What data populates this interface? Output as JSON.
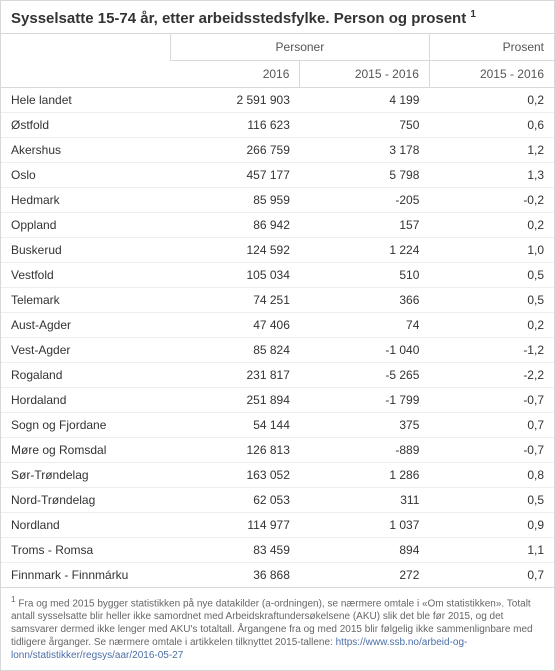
{
  "title": "Sysselsatte 15-74 år, etter arbeidsstedsfylke. Person og prosent",
  "footnote_marker": "1",
  "headers": {
    "group_personer": "Personer",
    "group_prosent": "Prosent",
    "col_2016": "2016",
    "col_diff": "2015 - 2016",
    "col_pct": "2015 - 2016"
  },
  "rows": [
    {
      "name": "Hele landet",
      "v2016": "2 591 903",
      "diff": "4 199",
      "pct": "0,2"
    },
    {
      "name": "Østfold",
      "v2016": "116 623",
      "diff": "750",
      "pct": "0,6"
    },
    {
      "name": "Akershus",
      "v2016": "266 759",
      "diff": "3 178",
      "pct": "1,2"
    },
    {
      "name": "Oslo",
      "v2016": "457 177",
      "diff": "5 798",
      "pct": "1,3"
    },
    {
      "name": "Hedmark",
      "v2016": "85 959",
      "diff": "-205",
      "pct": "-0,2"
    },
    {
      "name": "Oppland",
      "v2016": "86 942",
      "diff": "157",
      "pct": "0,2"
    },
    {
      "name": "Buskerud",
      "v2016": "124 592",
      "diff": "1 224",
      "pct": "1,0"
    },
    {
      "name": "Vestfold",
      "v2016": "105 034",
      "diff": "510",
      "pct": "0,5"
    },
    {
      "name": "Telemark",
      "v2016": "74 251",
      "diff": "366",
      "pct": "0,5"
    },
    {
      "name": "Aust-Agder",
      "v2016": "47 406",
      "diff": "74",
      "pct": "0,2"
    },
    {
      "name": "Vest-Agder",
      "v2016": "85 824",
      "diff": "-1 040",
      "pct": "-1,2"
    },
    {
      "name": "Rogaland",
      "v2016": "231 817",
      "diff": "-5 265",
      "pct": "-2,2"
    },
    {
      "name": "Hordaland",
      "v2016": "251 894",
      "diff": "-1 799",
      "pct": "-0,7"
    },
    {
      "name": "Sogn og Fjordane",
      "v2016": "54 144",
      "diff": "375",
      "pct": "0,7"
    },
    {
      "name": "Møre og Romsdal",
      "v2016": "126 813",
      "diff": "-889",
      "pct": "-0,7"
    },
    {
      "name": "Sør-Trøndelag",
      "v2016": "163 052",
      "diff": "1 286",
      "pct": "0,8"
    },
    {
      "name": "Nord-Trøndelag",
      "v2016": "62 053",
      "diff": "311",
      "pct": "0,5"
    },
    {
      "name": "Nordland",
      "v2016": "114 977",
      "diff": "1 037",
      "pct": "0,9"
    },
    {
      "name": "Troms - Romsa",
      "v2016": "83 459",
      "diff": "894",
      "pct": "1,1"
    },
    {
      "name": "Finnmark - Finnmárku",
      "v2016": "36 868",
      "diff": "272",
      "pct": "0,7"
    }
  ],
  "footnote": {
    "marker": "1",
    "text": "Fra og med 2015 bygger statistikken på nye datakilder (a-ordningen), se nærmere omtale i «Om statistikken». Totalt antall sysselsatte blir heller ikke samordnet med Arbeidskraftundersøkelsene (AKU) slik det ble før 2015, og det samsvarer dermed ikke lenger med AKU's totaltall. Årgangene fra og med 2015 blir følgelig ikke sammenlignbare med tidligere årganger. Se nærmere omtale i artikkelen tilknyttet 2015-tallene: ",
    "link": "https://www.ssb.no/arbeid-og-lonn/statistikker/regsys/aar/2016-05-27"
  },
  "colors": {
    "border": "#d8d8d8",
    "row_border": "#eeeeee",
    "text": "#333333",
    "muted": "#666666",
    "link": "#4b6ea9",
    "background": "#ffffff"
  }
}
